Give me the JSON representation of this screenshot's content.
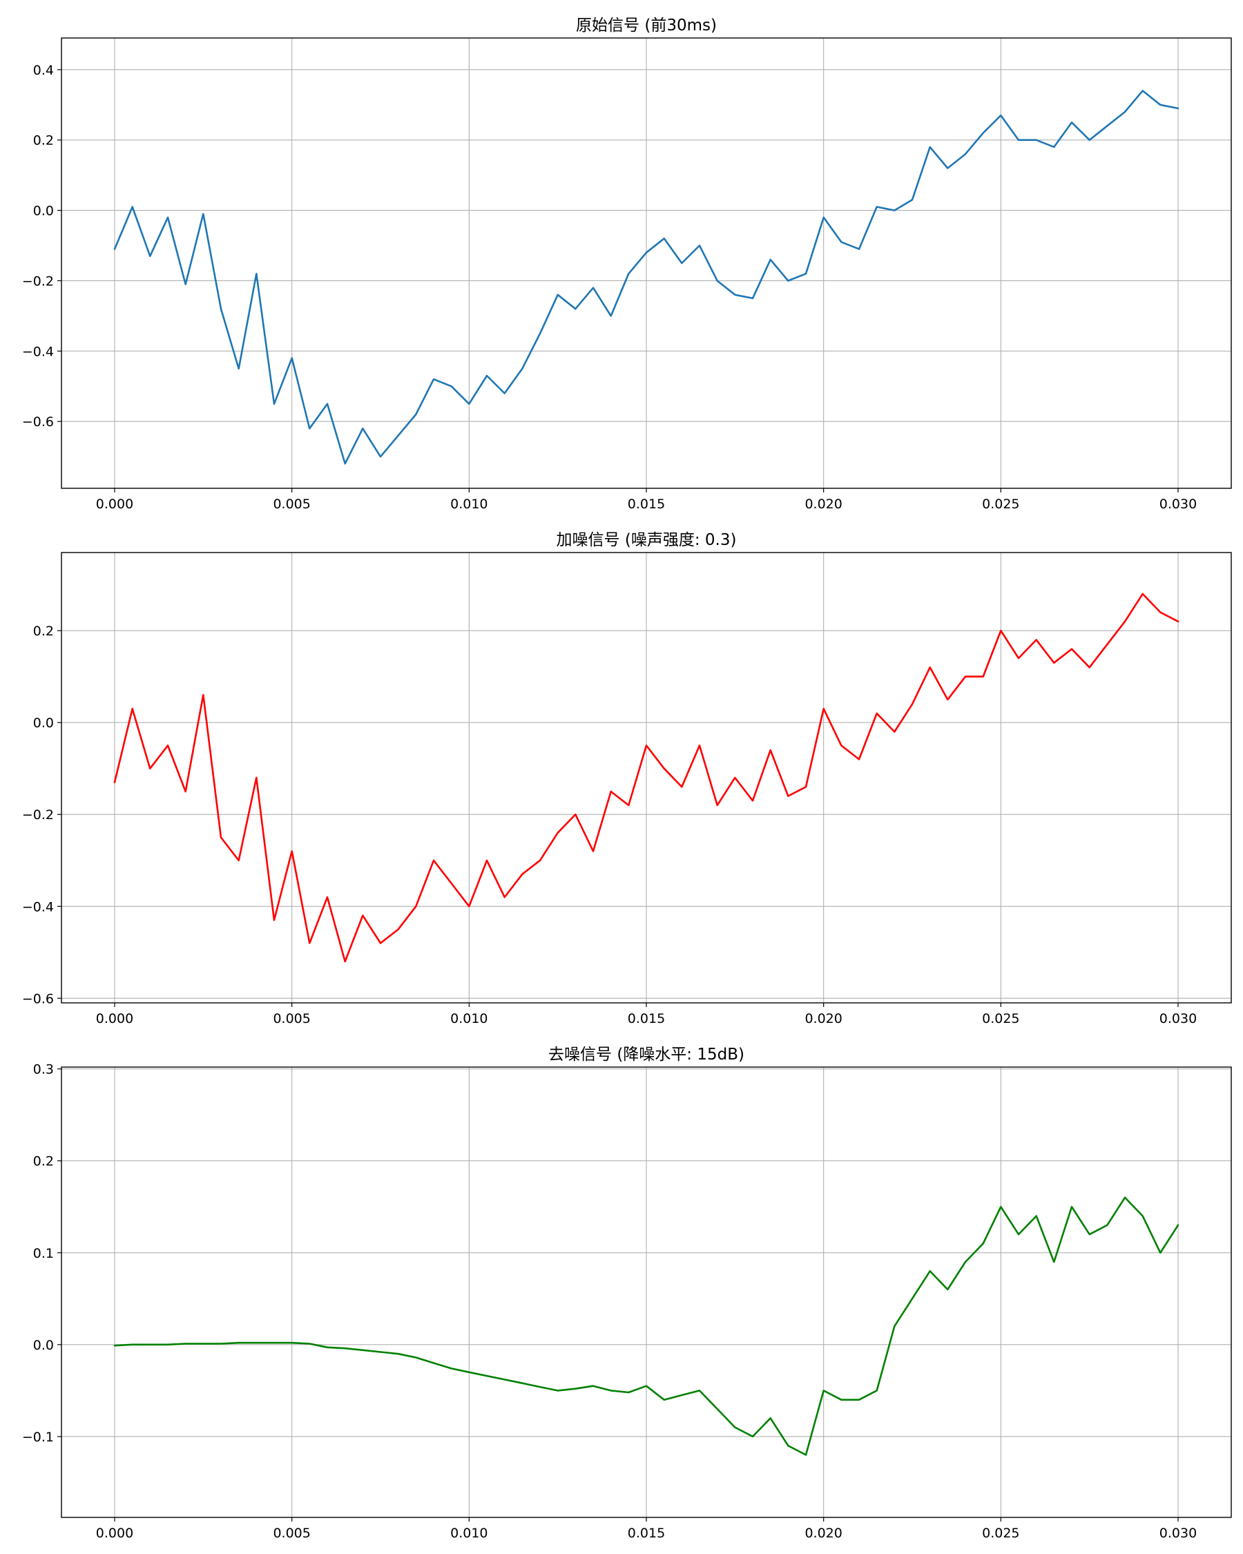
{
  "figure": {
    "background": "#ffffff",
    "grid_color": "#b0b0b0",
    "axis_color": "#000000"
  },
  "chart_data": [
    {
      "type": "line",
      "title": "原始信号 (前30ms)",
      "xlabel": "",
      "ylabel": "",
      "xlim": [
        -0.0015,
        0.0315
      ],
      "ylim": [
        -0.79,
        0.49
      ],
      "xticks": [
        "0.000",
        "0.005",
        "0.010",
        "0.015",
        "0.020",
        "0.025",
        "0.030"
      ],
      "xtick_values": [
        0,
        0.005,
        0.01,
        0.015,
        0.02,
        0.025,
        0.03
      ],
      "yticks": [
        "−0.6",
        "−0.4",
        "−0.2",
        "0.0",
        "0.2",
        "0.4"
      ],
      "ytick_values": [
        -0.6,
        -0.4,
        -0.2,
        0.0,
        0.2,
        0.4
      ],
      "grid": true,
      "series": [
        {
          "color": "#1f77b4",
          "x": [
            0,
            0.0005,
            0.001,
            0.0015,
            0.002,
            0.0025,
            0.003,
            0.0035,
            0.004,
            0.0045,
            0.005,
            0.0055,
            0.006,
            0.0065,
            0.007,
            0.0075,
            0.008,
            0.0085,
            0.009,
            0.0095,
            0.01,
            0.0105,
            0.011,
            0.0115,
            0.012,
            0.0125,
            0.013,
            0.0135,
            0.014,
            0.0145,
            0.015,
            0.0155,
            0.016,
            0.0165,
            0.017,
            0.0175,
            0.018,
            0.0185,
            0.019,
            0.0195,
            0.02,
            0.0205,
            0.021,
            0.0215,
            0.022,
            0.0225,
            0.023,
            0.0235,
            0.024,
            0.0245,
            0.025,
            0.0255,
            0.026,
            0.0265,
            0.027,
            0.0275,
            0.028,
            0.0285,
            0.029,
            0.0295,
            0.03
          ],
          "y": [
            -0.11,
            0.01,
            -0.13,
            -0.02,
            -0.21,
            -0.01,
            -0.28,
            -0.45,
            -0.18,
            -0.55,
            -0.42,
            -0.62,
            -0.55,
            -0.72,
            -0.62,
            -0.7,
            -0.64,
            -0.58,
            -0.48,
            -0.5,
            -0.55,
            -0.47,
            -0.52,
            -0.45,
            -0.35,
            -0.24,
            -0.28,
            -0.22,
            -0.3,
            -0.18,
            -0.12,
            -0.08,
            -0.15,
            -0.1,
            -0.2,
            -0.24,
            -0.25,
            -0.14,
            -0.2,
            -0.18,
            -0.02,
            -0.09,
            -0.11,
            0.01,
            0.0,
            0.03,
            0.18,
            0.12,
            0.16,
            0.22,
            0.27,
            0.2,
            0.2,
            0.18,
            0.25,
            0.2,
            0.24,
            0.28,
            0.34,
            0.3,
            0.29
          ]
        }
      ]
    },
    {
      "type": "line",
      "title": "加噪信号 (噪声强度: 0.3)",
      "xlabel": "",
      "ylabel": "",
      "xlim": [
        -0.0015,
        0.0315
      ],
      "ylim": [
        -0.61,
        0.37
      ],
      "xticks": [
        "0.000",
        "0.005",
        "0.010",
        "0.015",
        "0.020",
        "0.025",
        "0.030"
      ],
      "xtick_values": [
        0,
        0.005,
        0.01,
        0.015,
        0.02,
        0.025,
        0.03
      ],
      "yticks": [
        "−0.6",
        "−0.4",
        "−0.2",
        "0.0",
        "0.2"
      ],
      "ytick_values": [
        -0.6,
        -0.4,
        -0.2,
        0.0,
        0.2
      ],
      "grid": true,
      "series": [
        {
          "color": "#ff0000",
          "x": [
            0,
            0.0005,
            0.001,
            0.0015,
            0.002,
            0.0025,
            0.003,
            0.0035,
            0.004,
            0.0045,
            0.005,
            0.0055,
            0.006,
            0.0065,
            0.007,
            0.0075,
            0.008,
            0.0085,
            0.009,
            0.0095,
            0.01,
            0.0105,
            0.011,
            0.0115,
            0.012,
            0.0125,
            0.013,
            0.0135,
            0.014,
            0.0145,
            0.015,
            0.0155,
            0.016,
            0.0165,
            0.017,
            0.0175,
            0.018,
            0.0185,
            0.019,
            0.0195,
            0.02,
            0.0205,
            0.021,
            0.0215,
            0.022,
            0.0225,
            0.023,
            0.0235,
            0.024,
            0.0245,
            0.025,
            0.0255,
            0.026,
            0.0265,
            0.027,
            0.0275,
            0.028,
            0.0285,
            0.029,
            0.0295,
            0.03
          ],
          "y": [
            -0.13,
            0.03,
            -0.1,
            -0.05,
            -0.15,
            0.06,
            -0.25,
            -0.3,
            -0.12,
            -0.43,
            -0.28,
            -0.48,
            -0.38,
            -0.52,
            -0.42,
            -0.48,
            -0.45,
            -0.4,
            -0.3,
            -0.35,
            -0.4,
            -0.3,
            -0.38,
            -0.33,
            -0.3,
            -0.24,
            -0.2,
            -0.28,
            -0.15,
            -0.18,
            -0.05,
            -0.1,
            -0.14,
            -0.05,
            -0.18,
            -0.12,
            -0.17,
            -0.06,
            -0.16,
            -0.14,
            0.03,
            -0.05,
            -0.08,
            0.02,
            -0.02,
            0.04,
            0.12,
            0.05,
            0.1,
            0.1,
            0.2,
            0.14,
            0.18,
            0.13,
            0.16,
            0.12,
            0.17,
            0.22,
            0.28,
            0.24,
            0.22
          ]
        }
      ]
    },
    {
      "type": "line",
      "title": "去噪信号 (降噪水平: 15dB)",
      "xlabel": "",
      "ylabel": "",
      "xlim": [
        -0.0015,
        0.0315
      ],
      "ylim": [
        -0.188,
        0.302
      ],
      "xticks": [
        "0.000",
        "0.005",
        "0.010",
        "0.015",
        "0.020",
        "0.025",
        "0.030"
      ],
      "xtick_values": [
        0,
        0.005,
        0.01,
        0.015,
        0.02,
        0.025,
        0.03
      ],
      "yticks": [
        "−0.1",
        "0.0",
        "0.1",
        "0.2",
        "0.3"
      ],
      "ytick_values": [
        -0.1,
        0.0,
        0.1,
        0.2,
        0.3
      ],
      "grid": true,
      "series": [
        {
          "color": "#008000",
          "x": [
            0,
            0.0005,
            0.001,
            0.0015,
            0.002,
            0.0025,
            0.003,
            0.0035,
            0.004,
            0.0045,
            0.005,
            0.0055,
            0.006,
            0.0065,
            0.007,
            0.0075,
            0.008,
            0.0085,
            0.009,
            0.0095,
            0.01,
            0.0105,
            0.011,
            0.0115,
            0.012,
            0.0125,
            0.013,
            0.0135,
            0.014,
            0.0145,
            0.015,
            0.0155,
            0.016,
            0.0165,
            0.017,
            0.0175,
            0.018,
            0.0185,
            0.019,
            0.0195,
            0.02,
            0.0205,
            0.021,
            0.0215,
            0.022,
            0.0225,
            0.023,
            0.0235,
            0.024,
            0.0245,
            0.025,
            0.0255,
            0.026,
            0.0265,
            0.027,
            0.0275,
            0.028,
            0.0285,
            0.029,
            0.0295,
            0.03
          ],
          "y": [
            -0.001,
            0.0,
            0.0,
            0.0,
            0.001,
            0.001,
            0.001,
            0.002,
            0.002,
            0.002,
            0.002,
            0.001,
            -0.003,
            -0.004,
            -0.006,
            -0.008,
            -0.01,
            -0.014,
            -0.02,
            -0.026,
            -0.03,
            -0.034,
            -0.038,
            -0.042,
            -0.046,
            -0.05,
            -0.048,
            -0.045,
            -0.05,
            -0.052,
            -0.045,
            -0.06,
            -0.055,
            -0.05,
            -0.07,
            -0.09,
            -0.1,
            -0.08,
            -0.11,
            -0.12,
            -0.05,
            -0.06,
            -0.06,
            -0.05,
            0.02,
            0.05,
            0.08,
            0.06,
            0.09,
            0.11,
            0.15,
            0.12,
            0.14,
            0.09,
            0.15,
            0.12,
            0.13,
            0.16,
            0.14,
            0.1,
            0.13
          ]
        }
      ]
    }
  ]
}
